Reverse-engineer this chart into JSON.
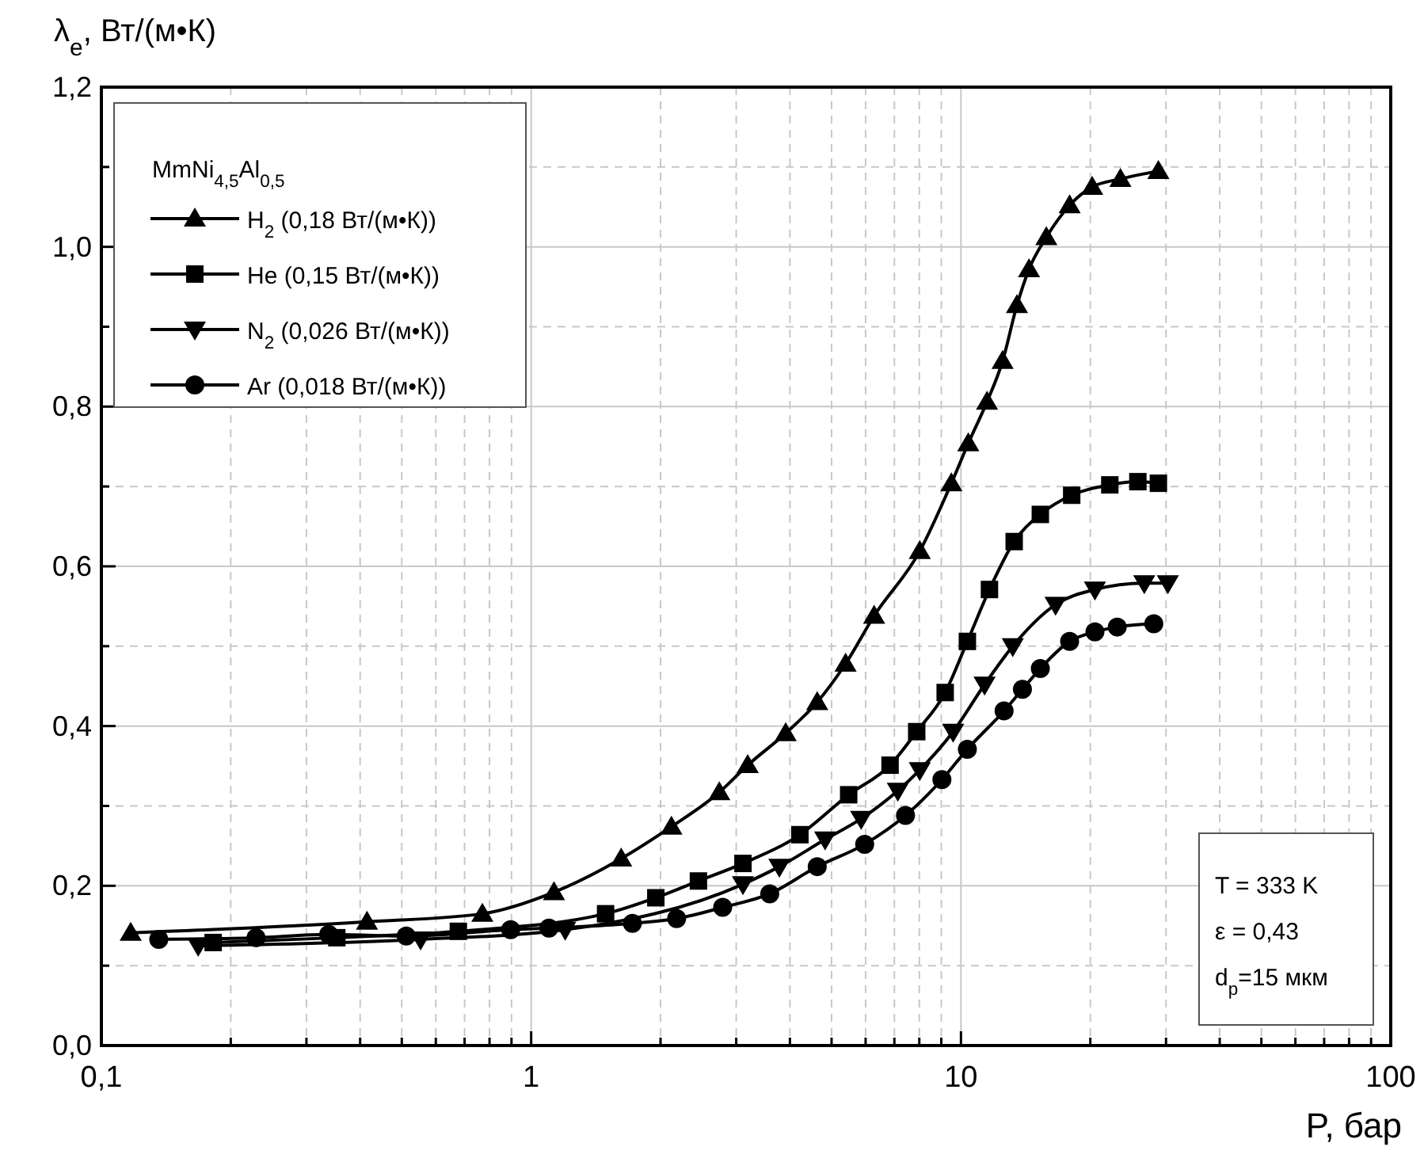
{
  "chart_data": {
    "type": "line",
    "xlabel": "P, бар",
    "ylabel": "λ$_{e}$, Вт/(м•К)",
    "legend_title": "MmNi$_{4,5}$Al$_{0,5}$",
    "log": "x",
    "grid": true,
    "legend": "top left",
    "line_style": "solid",
    "xlim": [
      0.1,
      100
    ],
    "ylim": [
      0,
      1.2
    ],
    "xticks": [
      {
        "value": 0.1,
        "label": "0,1"
      },
      {
        "value": 0.2,
        "label": null
      },
      {
        "value": 0.3,
        "label": null
      },
      {
        "value": 0.4,
        "label": null
      },
      {
        "value": 0.5,
        "label": null
      },
      {
        "value": 0.6,
        "label": null
      },
      {
        "value": 0.7,
        "label": null
      },
      {
        "value": 0.8,
        "label": null
      },
      {
        "value": 0.9,
        "label": null
      },
      1,
      {
        "value": 2,
        "label": null
      },
      {
        "value": 3,
        "label": null
      },
      {
        "value": 4,
        "label": null
      },
      {
        "value": 5,
        "label": null
      },
      {
        "value": 6,
        "label": null
      },
      {
        "value": 7,
        "label": null
      },
      {
        "value": 8,
        "label": null
      },
      {
        "value": 9,
        "label": null
      },
      10,
      {
        "value": 20,
        "label": null
      },
      {
        "value": 30,
        "label": null
      },
      {
        "value": 40,
        "label": null
      },
      {
        "value": 50,
        "label": null
      },
      {
        "value": 60,
        "label": null
      },
      {
        "value": 70,
        "label": null
      },
      {
        "value": 80,
        "label": null
      },
      {
        "value": 90,
        "label": null
      },
      100
    ],
    "yticks": [
      {
        "value": 0,
        "label": "0,0"
      },
      {
        "value": 0.1,
        "label": null
      },
      {
        "value": 0.2,
        "label": "0,2"
      },
      {
        "value": 0.3,
        "label": null
      },
      {
        "value": 0.4,
        "label": "0,4"
      },
      {
        "value": 0.5,
        "label": null
      },
      {
        "value": 0.6,
        "label": "0,6"
      },
      {
        "value": 0.7,
        "label": null
      },
      {
        "value": 0.8,
        "label": "0,8"
      },
      {
        "value": 0.9,
        "label": null
      },
      {
        "value": 1.0,
        "label": "1,0"
      },
      {
        "value": 1.1,
        "label": null
      },
      {
        "value": 1.2,
        "label": "1,2"
      }
    ],
    "annotations": [
      "T = 333 K",
      "ε = 0,43",
      "d$_{p}$=15 мкм"
    ],
    "series": [
      {
        "name": "H$_{2}$ (0,18 Вт/(м•К))",
        "color": "#000000",
        "marker": "triangle",
        "x": [
          0.117,
          0.415,
          0.77,
          1.13,
          1.62,
          2.12,
          2.74,
          3.19,
          3.91,
          4.63,
          5.39,
          6.28,
          8.02,
          9.5,
          10.4,
          11.5,
          12.5,
          13.5,
          14.4,
          15.8,
          17.9,
          20.2,
          23.5,
          28.8
        ],
        "values": [
          0.141,
          0.155,
          0.165,
          0.192,
          0.234,
          0.274,
          0.317,
          0.351,
          0.391,
          0.43,
          0.478,
          0.538,
          0.619,
          0.704,
          0.754,
          0.806,
          0.857,
          0.927,
          0.972,
          1.012,
          1.052,
          1.075,
          1.085,
          1.095
        ]
      },
      {
        "name": "He (0,15 Вт/(м•К))",
        "color": "#000000",
        "marker": "square",
        "x": [
          0.182,
          0.353,
          0.677,
          1.49,
          1.95,
          2.45,
          3.11,
          4.22,
          5.48,
          6.84,
          7.89,
          9.19,
          10.35,
          11.65,
          13.3,
          15.3,
          18.1,
          22.2,
          25.8,
          28.8
        ],
        "values": [
          0.129,
          0.135,
          0.143,
          0.165,
          0.185,
          0.206,
          0.228,
          0.264,
          0.314,
          0.351,
          0.393,
          0.442,
          0.506,
          0.571,
          0.631,
          0.665,
          0.689,
          0.702,
          0.706,
          0.704
        ]
      },
      {
        "name": "N$_{2}$ (0,026 Вт/(м•К))",
        "color": "#000000",
        "marker": "triangle-down",
        "x": [
          0.168,
          0.553,
          1.2,
          3.11,
          3.78,
          4.83,
          5.86,
          7.13,
          8.02,
          9.59,
          11.35,
          13.2,
          16.6,
          20.5,
          26.7,
          30.3
        ],
        "values": [
          0.125,
          0.133,
          0.145,
          0.202,
          0.224,
          0.258,
          0.284,
          0.319,
          0.345,
          0.393,
          0.452,
          0.5,
          0.552,
          0.571,
          0.579,
          0.579
        ]
      },
      {
        "name": "Ar (0,018 Вт/(м•К))",
        "color": "#000000",
        "marker": "circle",
        "x": [
          0.136,
          0.229,
          0.338,
          0.512,
          0.896,
          1.1,
          1.72,
          2.18,
          2.79,
          3.59,
          4.63,
          5.97,
          7.43,
          9.03,
          10.35,
          12.6,
          13.9,
          15.3,
          17.9,
          20.5,
          23.1,
          28.1
        ],
        "values": [
          0.133,
          0.135,
          0.139,
          0.137,
          0.145,
          0.147,
          0.153,
          0.159,
          0.173,
          0.19,
          0.224,
          0.252,
          0.288,
          0.333,
          0.371,
          0.419,
          0.446,
          0.472,
          0.506,
          0.518,
          0.524,
          0.528
        ]
      }
    ]
  }
}
